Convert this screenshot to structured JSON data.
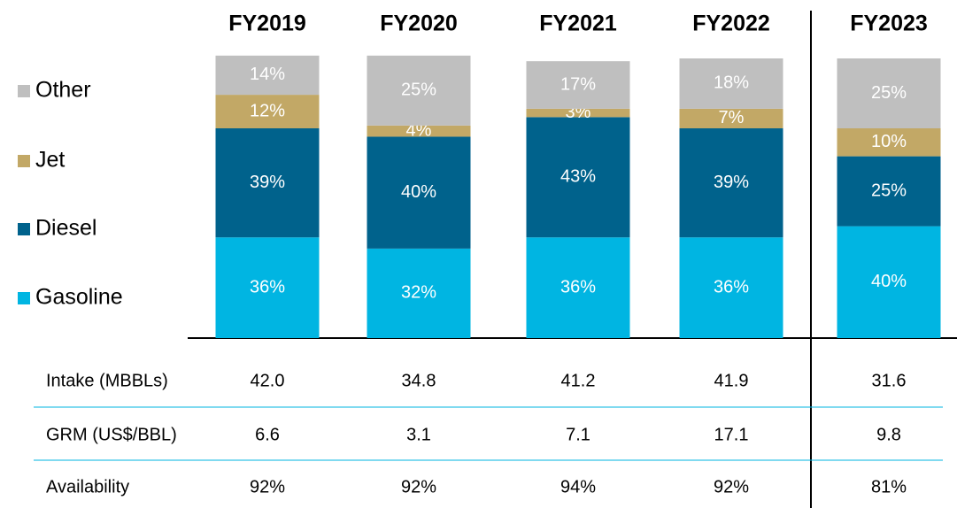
{
  "chart_data": {
    "type": "stacked_bar",
    "categories": [
      "FY2019",
      "FY2020",
      "FY2021",
      "FY2022",
      "FY2023"
    ],
    "series": [
      {
        "name": "Gasoline",
        "color": "#00b5e2",
        "values": [
          36,
          32,
          36,
          36,
          40
        ],
        "value_labels": [
          "36%",
          "32%",
          "36%",
          "36%",
          "40%"
        ]
      },
      {
        "name": "Diesel",
        "color": "#00628c",
        "values": [
          39,
          40,
          43,
          39,
          25
        ],
        "value_labels": [
          "39%",
          "40%",
          "43%",
          "39%",
          "25%"
        ]
      },
      {
        "name": "Jet",
        "color": "#c2a866",
        "values": [
          12,
          4,
          3,
          7,
          10
        ],
        "value_labels": [
          "12%",
          "4%",
          "3%",
          "7%",
          "10%"
        ]
      },
      {
        "name": "Other",
        "color": "#bfbfbf",
        "values": [
          14,
          25,
          17,
          18,
          25
        ],
        "value_labels": [
          "14%",
          "25%",
          "17%",
          "18%",
          "25%"
        ]
      }
    ]
  },
  "table": {
    "rows": [
      {
        "label": "Intake (MBBLs)",
        "values": [
          "42.0",
          "34.8",
          "41.2",
          "41.9",
          "31.6"
        ]
      },
      {
        "label": "GRM (US$/BBL)",
        "values": [
          "6.6",
          "3.1",
          "7.1",
          "17.1",
          "9.8"
        ]
      },
      {
        "label": "Availability",
        "values": [
          "92%",
          "92%",
          "94%",
          "92%",
          "81%"
        ]
      }
    ]
  }
}
